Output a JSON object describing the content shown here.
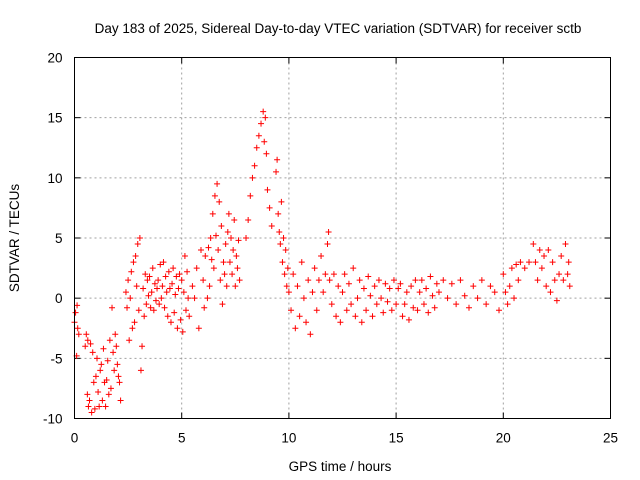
{
  "chart_data": {
    "type": "scatter",
    "title": "Day 183 of 2025, Sidereal Day-to-day VTEC variation (SDTVAR) for receiver sctb",
    "xlabel": "GPS time / hours",
    "ylabel": "SDTVAR / TECUs",
    "xlim": [
      0,
      25
    ],
    "ylim": [
      -10,
      20
    ],
    "xticks": [
      0,
      5,
      10,
      15,
      20,
      25
    ],
    "yticks": [
      -10,
      -5,
      0,
      5,
      10,
      15,
      20
    ],
    "xtick_labels": [
      "0",
      "5",
      "10",
      "15",
      "20",
      "25"
    ],
    "ytick_labels": [
      "-10",
      "-5",
      "0",
      "5",
      "10",
      "15",
      "20"
    ],
    "grid": true,
    "marker": "+",
    "series": [
      {
        "name": "SDTVAR",
        "color": "#ff0000",
        "points": [
          [
            0.0,
            -2.0
          ],
          [
            0.05,
            -1.2
          ],
          [
            0.1,
            -4.8
          ],
          [
            0.12,
            -0.6
          ],
          [
            0.15,
            -2.5
          ],
          [
            0.2,
            -3.0
          ],
          [
            0.5,
            -4.0
          ],
          [
            0.55,
            -3.0
          ],
          [
            0.6,
            -8.0
          ],
          [
            0.62,
            -3.5
          ],
          [
            0.65,
            -9.0
          ],
          [
            0.7,
            -8.5
          ],
          [
            0.75,
            -3.8
          ],
          [
            0.8,
            -9.5
          ],
          [
            0.85,
            -4.5
          ],
          [
            0.9,
            -7.0
          ],
          [
            0.95,
            -9.2
          ],
          [
            1.0,
            -6.5
          ],
          [
            1.05,
            -5.0
          ],
          [
            1.1,
            -7.8
          ],
          [
            1.15,
            -9.0
          ],
          [
            1.2,
            -6.0
          ],
          [
            1.25,
            -5.5
          ],
          [
            1.3,
            -8.5
          ],
          [
            1.35,
            -4.2
          ],
          [
            1.4,
            -7.0
          ],
          [
            1.45,
            -9.0
          ],
          [
            1.5,
            -6.8
          ],
          [
            1.55,
            -5.2
          ],
          [
            1.6,
            -8.0
          ],
          [
            1.65,
            -3.5
          ],
          [
            1.7,
            -7.5
          ],
          [
            1.75,
            -0.8
          ],
          [
            1.8,
            -4.5
          ],
          [
            1.85,
            -6.0
          ],
          [
            1.9,
            -3.0
          ],
          [
            1.95,
            -4.0
          ],
          [
            2.0,
            -5.5
          ],
          [
            2.05,
            -6.5
          ],
          [
            2.1,
            -7.0
          ],
          [
            2.15,
            -8.5
          ],
          [
            2.4,
            0.5
          ],
          [
            2.45,
            -0.8
          ],
          [
            2.5,
            1.5
          ],
          [
            2.55,
            -3.5
          ],
          [
            2.6,
            0.0
          ],
          [
            2.65,
            2.2
          ],
          [
            2.7,
            -2.5
          ],
          [
            2.75,
            3.0
          ],
          [
            2.8,
            -2.0
          ],
          [
            2.85,
            3.5
          ],
          [
            2.9,
            1.0
          ],
          [
            2.95,
            4.5
          ],
          [
            3.0,
            -1.0
          ],
          [
            3.05,
            5.0
          ],
          [
            3.1,
            -6.0
          ],
          [
            3.15,
            -4.0
          ],
          [
            3.2,
            0.8
          ],
          [
            3.25,
            -1.5
          ],
          [
            3.3,
            2.0
          ],
          [
            3.35,
            -0.5
          ],
          [
            3.4,
            1.5
          ],
          [
            3.45,
            0.2
          ],
          [
            3.5,
            1.8
          ],
          [
            3.55,
            -0.8
          ],
          [
            3.6,
            0.5
          ],
          [
            3.65,
            2.5
          ],
          [
            3.7,
            -1.0
          ],
          [
            3.75,
            1.2
          ],
          [
            3.8,
            -0.2
          ],
          [
            3.85,
            0.8
          ],
          [
            3.9,
            1.5
          ],
          [
            3.95,
            -0.5
          ],
          [
            4.0,
            2.8
          ],
          [
            4.05,
            0.0
          ],
          [
            4.1,
            1.0
          ],
          [
            4.15,
            3.0
          ],
          [
            4.2,
            -0.8
          ],
          [
            4.25,
            1.8
          ],
          [
            4.3,
            0.5
          ],
          [
            4.35,
            -1.5
          ],
          [
            4.4,
            2.2
          ],
          [
            4.45,
            0.8
          ],
          [
            4.5,
            -2.0
          ],
          [
            4.55,
            1.2
          ],
          [
            4.6,
            2.5
          ],
          [
            4.65,
            -1.2
          ],
          [
            4.7,
            0.3
          ],
          [
            4.75,
            1.8
          ],
          [
            4.8,
            -2.5
          ],
          [
            4.85,
            0.8
          ],
          [
            4.9,
            2.0
          ],
          [
            4.95,
            -1.8
          ],
          [
            5.0,
            1.5
          ],
          [
            5.05,
            -2.8
          ],
          [
            5.1,
            0.5
          ],
          [
            5.15,
            3.5
          ],
          [
            5.2,
            -1.0
          ],
          [
            5.25,
            2.2
          ],
          [
            5.3,
            0.0
          ],
          [
            5.35,
            -1.5
          ],
          [
            5.5,
            1.0
          ],
          [
            5.6,
            0.0
          ],
          [
            5.7,
            2.5
          ],
          [
            5.8,
            -2.5
          ],
          [
            5.9,
            4.0
          ],
          [
            6.0,
            1.5
          ],
          [
            6.05,
            -0.8
          ],
          [
            6.1,
            3.5
          ],
          [
            6.2,
            0.0
          ],
          [
            6.25,
            4.2
          ],
          [
            6.3,
            1.0
          ],
          [
            6.35,
            5.0
          ],
          [
            6.4,
            3.2
          ],
          [
            6.45,
            7.0
          ],
          [
            6.5,
            2.5
          ],
          [
            6.55,
            8.5
          ],
          [
            6.6,
            5.2
          ],
          [
            6.65,
            9.5
          ],
          [
            6.7,
            4.0
          ],
          [
            6.75,
            8.0
          ],
          [
            6.8,
            1.5
          ],
          [
            6.85,
            6.0
          ],
          [
            6.9,
            -0.5
          ],
          [
            6.95,
            3.0
          ],
          [
            7.0,
            2.0
          ],
          [
            7.05,
            4.5
          ],
          [
            7.1,
            1.0
          ],
          [
            7.15,
            5.5
          ],
          [
            7.2,
            7.0
          ],
          [
            7.25,
            3.0
          ],
          [
            7.3,
            5.0
          ],
          [
            7.35,
            2.0
          ],
          [
            7.4,
            4.0
          ],
          [
            7.45,
            6.5
          ],
          [
            7.5,
            1.0
          ],
          [
            7.55,
            3.5
          ],
          [
            7.6,
            2.5
          ],
          [
            7.65,
            4.8
          ],
          [
            7.7,
            1.5
          ],
          [
            8.0,
            5.0
          ],
          [
            8.1,
            6.5
          ],
          [
            8.2,
            8.5
          ],
          [
            8.3,
            10.0
          ],
          [
            8.4,
            11.0
          ],
          [
            8.5,
            12.5
          ],
          [
            8.6,
            13.5
          ],
          [
            8.7,
            14.5
          ],
          [
            8.8,
            15.5
          ],
          [
            8.85,
            13.0
          ],
          [
            8.9,
            15.0
          ],
          [
            8.95,
            12.0
          ],
          [
            9.0,
            9.0
          ],
          [
            9.1,
            7.5
          ],
          [
            9.2,
            6.0
          ],
          [
            9.4,
            10.5
          ],
          [
            9.45,
            11.5
          ],
          [
            9.5,
            7.0
          ],
          [
            9.55,
            5.5
          ],
          [
            9.6,
            4.5
          ],
          [
            9.65,
            8.0
          ],
          [
            9.7,
            3.0
          ],
          [
            9.75,
            5.0
          ],
          [
            9.8,
            2.0
          ],
          [
            9.85,
            4.0
          ],
          [
            9.9,
            1.0
          ],
          [
            9.95,
            2.5
          ],
          [
            10.0,
            0.5
          ],
          [
            10.1,
            -1.0
          ],
          [
            10.2,
            2.0
          ],
          [
            10.3,
            -2.5
          ],
          [
            10.4,
            1.0
          ],
          [
            10.5,
            -1.5
          ],
          [
            10.6,
            3.0
          ],
          [
            10.7,
            0.0
          ],
          [
            10.8,
            -2.0
          ],
          [
            10.9,
            1.5
          ],
          [
            11.0,
            -3.0
          ],
          [
            11.1,
            0.5
          ],
          [
            11.2,
            2.5
          ],
          [
            11.3,
            -1.0
          ],
          [
            11.4,
            1.5
          ],
          [
            11.5,
            3.5
          ],
          [
            11.6,
            0.5
          ],
          [
            11.7,
            2.0
          ],
          [
            11.8,
            4.5
          ],
          [
            11.85,
            5.5
          ],
          [
            11.9,
            1.5
          ],
          [
            12.0,
            -0.5
          ],
          [
            12.1,
            2.0
          ],
          [
            12.2,
            -1.5
          ],
          [
            12.3,
            1.0
          ],
          [
            12.4,
            -2.0
          ],
          [
            12.5,
            0.5
          ],
          [
            12.6,
            2.0
          ],
          [
            12.7,
            -1.0
          ],
          [
            12.8,
            1.2
          ],
          [
            12.9,
            -0.5
          ],
          [
            13.0,
            2.5
          ],
          [
            13.1,
            -1.5
          ],
          [
            13.2,
            0.0
          ],
          [
            13.3,
            1.5
          ],
          [
            13.4,
            -2.0
          ],
          [
            13.5,
            0.8
          ],
          [
            13.6,
            -1.0
          ],
          [
            13.7,
            1.8
          ],
          [
            13.8,
            0.2
          ],
          [
            13.9,
            -1.5
          ],
          [
            14.0,
            1.0
          ],
          [
            14.1,
            -0.5
          ],
          [
            14.2,
            1.5
          ],
          [
            14.3,
            0.0
          ],
          [
            14.4,
            -1.2
          ],
          [
            14.5,
            1.2
          ],
          [
            14.6,
            -0.3
          ],
          [
            14.7,
            0.8
          ],
          [
            14.8,
            -1.0
          ],
          [
            14.9,
            1.5
          ],
          [
            15.0,
            -0.5
          ],
          [
            15.1,
            0.8
          ],
          [
            15.2,
            1.2
          ],
          [
            15.3,
            -1.5
          ],
          [
            15.4,
            -0.5
          ],
          [
            15.5,
            0.5
          ],
          [
            15.6,
            -1.8
          ],
          [
            15.7,
            1.0
          ],
          [
            15.8,
            -0.8
          ],
          [
            15.9,
            1.5
          ],
          [
            16.0,
            -1.0
          ],
          [
            16.1,
            0.5
          ],
          [
            16.2,
            1.5
          ],
          [
            16.3,
            -0.5
          ],
          [
            16.4,
            0.8
          ],
          [
            16.5,
            -1.2
          ],
          [
            16.6,
            1.8
          ],
          [
            16.7,
            0.2
          ],
          [
            16.8,
            -0.8
          ],
          [
            16.9,
            1.2
          ],
          [
            17.0,
            0.5
          ],
          [
            17.2,
            1.5
          ],
          [
            17.4,
            0.0
          ],
          [
            17.6,
            1.2
          ],
          [
            17.8,
            -0.5
          ],
          [
            18.0,
            1.5
          ],
          [
            18.2,
            0.2
          ],
          [
            18.4,
            -0.8
          ],
          [
            18.6,
            1.0
          ],
          [
            18.8,
            0.0
          ],
          [
            19.0,
            1.5
          ],
          [
            19.2,
            -0.5
          ],
          [
            19.4,
            1.0
          ],
          [
            19.6,
            0.5
          ],
          [
            19.8,
            -1.0
          ],
          [
            20.0,
            2.0
          ],
          [
            20.1,
            0.5
          ],
          [
            20.2,
            -0.5
          ],
          [
            20.3,
            1.0
          ],
          [
            20.4,
            2.5
          ],
          [
            20.5,
            0.0
          ],
          [
            20.6,
            2.8
          ],
          [
            20.7,
            1.5
          ],
          [
            20.8,
            3.0
          ],
          [
            21.0,
            2.5
          ],
          [
            21.2,
            3.0
          ],
          [
            21.4,
            4.5
          ],
          [
            21.5,
            3.0
          ],
          [
            21.6,
            1.5
          ],
          [
            21.7,
            4.0
          ],
          [
            21.8,
            2.5
          ],
          [
            21.9,
            3.5
          ],
          [
            22.0,
            1.0
          ],
          [
            22.1,
            4.0
          ],
          [
            22.2,
            0.5
          ],
          [
            22.3,
            3.0
          ],
          [
            22.4,
            1.5
          ],
          [
            22.5,
            -0.2
          ],
          [
            22.6,
            2.0
          ],
          [
            22.7,
            3.5
          ],
          [
            22.8,
            1.5
          ],
          [
            22.9,
            4.5
          ],
          [
            23.0,
            2.0
          ],
          [
            23.05,
            3.0
          ],
          [
            23.1,
            1.0
          ]
        ]
      }
    ]
  }
}
